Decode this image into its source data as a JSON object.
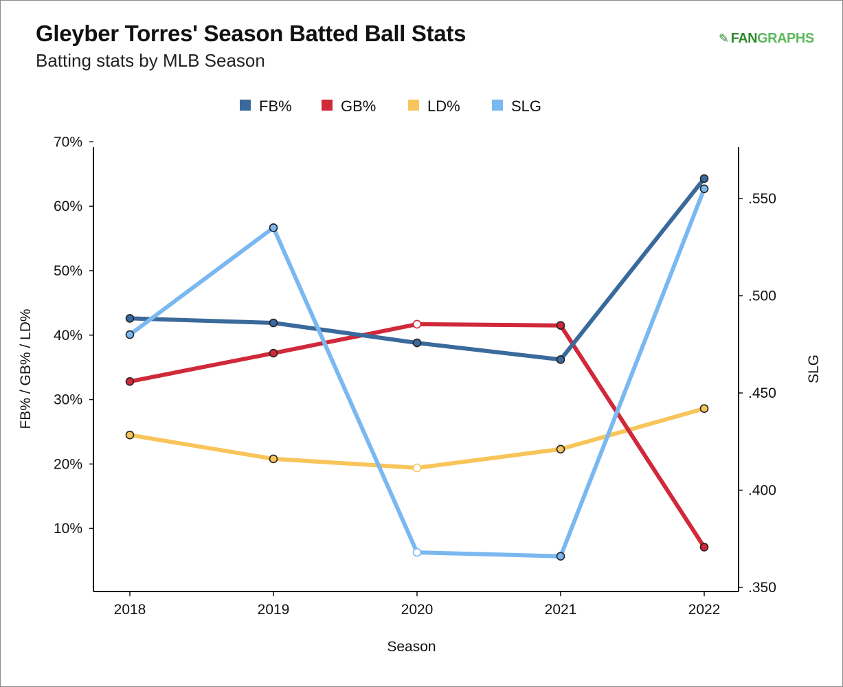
{
  "header": {
    "title": "Gleyber Torres' Season Batted Ball Stats",
    "subtitle": "Batting stats by MLB Season"
  },
  "logo": {
    "part1": "FAN",
    "part2": "GRAPHS"
  },
  "chart_data": {
    "type": "line",
    "title": "Gleyber Torres' Season Batted Ball Stats",
    "subtitle": "Batting stats by MLB Season",
    "xlabel": "Season",
    "ylabel": "FB% / GB% / LD%",
    "y2label": "SLG",
    "categories": [
      "2018",
      "2019",
      "2020",
      "2021",
      "2022"
    ],
    "ylim": [
      0,
      70
    ],
    "y_ticks": [
      10,
      20,
      30,
      40,
      50,
      60,
      70
    ],
    "y_tick_labels": [
      "10%",
      "20%",
      "30%",
      "40%",
      "50%",
      "60%",
      "70%"
    ],
    "y2lim": [
      0.347,
      0.573
    ],
    "y2_ticks": [
      0.35,
      0.4,
      0.45,
      0.5,
      0.55
    ],
    "y2_tick_labels": [
      ".350",
      ".400",
      ".450",
      ".500",
      ".550"
    ],
    "legend_position": "top-center",
    "grid": false,
    "series": [
      {
        "name": "FB%",
        "axis": "left",
        "color": "#3a6a9b",
        "values": [
          42.6,
          41.9,
          38.8,
          36.2,
          64.3
        ]
      },
      {
        "name": "GB%",
        "axis": "left",
        "color": "#d0293a",
        "values": [
          32.8,
          37.2,
          41.7,
          41.5,
          7.1
        ]
      },
      {
        "name": "LD%",
        "axis": "left",
        "color": "#f7c55a",
        "values": [
          24.5,
          20.8,
          19.4,
          22.3,
          28.6
        ]
      },
      {
        "name": "SLG",
        "axis": "right",
        "color": "#7ab8f0",
        "values": [
          0.48,
          0.535,
          0.368,
          0.366,
          0.555
        ]
      }
    ]
  }
}
